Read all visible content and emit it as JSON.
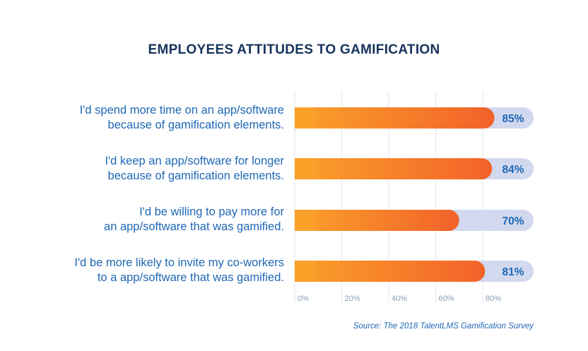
{
  "chart_data": {
    "type": "bar",
    "orientation": "horizontal",
    "title": "EMPLOYEES ATTITUDES TO GAMIFICATION",
    "categories": [
      [
        "I'd spend more time on an app/software",
        "because of gamification elements."
      ],
      [
        "I'd keep an app/software for longer",
        "because of gamification elements."
      ],
      [
        "I'd be willing to pay more for",
        "an app/software that was gamified."
      ],
      [
        "I'd be more likely to invite my co-workers",
        "to a app/software that was gamified."
      ]
    ],
    "values": [
      85,
      84,
      70,
      81
    ],
    "value_labels": [
      "85%",
      "84%",
      "70%",
      "81%"
    ],
    "xticks": [
      "0%",
      "20%",
      "40%",
      "60%",
      "80%"
    ],
    "xlim": [
      0,
      100
    ],
    "grid": true,
    "source": "Source: The 2018 TalentLMS Gamification Survey",
    "colors": {
      "bar_start": "#fba12a",
      "bar_end": "#f2622a",
      "track": "#d2d9ee",
      "value_text": "#1f68b5",
      "title": "#16335b",
      "grid": "#e3e6ec",
      "tick_text": "#8a9cb6"
    }
  }
}
